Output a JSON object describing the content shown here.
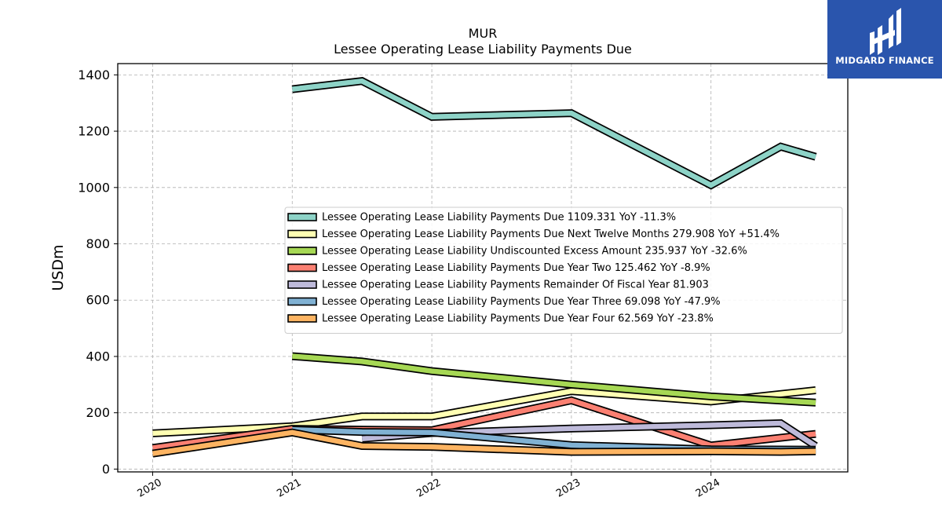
{
  "chart_data": {
    "type": "line",
    "title": "MUR",
    "subtitle": "Lessee Operating Lease Liability Payments Due",
    "xlabel": "",
    "ylabel": "USDm",
    "xlim": [
      2019.75,
      2024.98
    ],
    "ylim": [
      -10,
      1440
    ],
    "x_ticks": [
      "2020",
      "2021",
      "2022",
      "2023",
      "2024"
    ],
    "y_ticks": [
      "0",
      "200",
      "400",
      "600",
      "800",
      "1000",
      "1200",
      "1400"
    ],
    "grid": true,
    "legend_position": "center-right",
    "series": [
      {
        "name": "Lessee Operating Lease Liability Payments Due",
        "legend_label": "Lessee Operating Lease Liability Payments Due  1109.331 YoY -11.3%",
        "color": "#8dd3c7",
        "points": [
          [
            2021.0,
            1349
          ],
          [
            2021.5,
            1378
          ],
          [
            2022.0,
            1251
          ],
          [
            2023.0,
            1264
          ],
          [
            2024.0,
            1008
          ],
          [
            2024.5,
            1145
          ],
          [
            2024.75,
            1109
          ]
        ]
      },
      {
        "name": "Lessee Operating Lease Liability Payments Due Next Twelve Months",
        "legend_label": "Lessee Operating Lease Liability Payments Due Next Twelve Months  279.908 YoY +51.4%",
        "color": "#ffffb3",
        "points": [
          [
            2020.0,
            127
          ],
          [
            2021.0,
            152
          ],
          [
            2021.5,
            187
          ],
          [
            2022.0,
            187
          ],
          [
            2023.0,
            277
          ],
          [
            2024.0,
            240
          ],
          [
            2024.75,
            280
          ]
        ]
      },
      {
        "name": "Lessee Operating Lease Liability Undiscounted Excess Amount",
        "legend_label": "Lessee Operating Lease Liability Undiscounted Excess Amount  235.937 YoY -32.6%",
        "color": "#a6d854",
        "points": [
          [
            2021.0,
            401
          ],
          [
            2021.5,
            382
          ],
          [
            2022.0,
            348
          ],
          [
            2023.0,
            300
          ],
          [
            2024.0,
            258
          ],
          [
            2024.75,
            236
          ]
        ]
      },
      {
        "name": "Lessee Operating Lease Liability Payments Due Year Two",
        "legend_label": "Lessee Operating Lease Liability Payments Due Year Two  125.462 YoY -8.9%",
        "color": "#fb8072",
        "points": [
          [
            2020.0,
            75
          ],
          [
            2021.0,
            143
          ],
          [
            2021.5,
            140
          ],
          [
            2022.0,
            138
          ],
          [
            2023.0,
            244
          ],
          [
            2024.0,
            84
          ],
          [
            2024.75,
            125
          ]
        ]
      },
      {
        "name": "Lessee Operating Lease Liability Payments Remainder Of Fiscal Year",
        "legend_label": "Lessee Operating Lease Liability Payments Remainder Of Fiscal Year  81.903",
        "color": "#bebada",
        "points": [
          [
            2021.5,
            108
          ],
          [
            2022.0,
            128
          ],
          [
            2023.0,
            144
          ],
          [
            2024.0,
            156
          ],
          [
            2024.5,
            163
          ],
          [
            2024.75,
            82
          ]
        ]
      },
      {
        "name": "Lessee Operating Lease Liability Payments Due Year Three",
        "legend_label": "Lessee Operating Lease Liability Payments Due Year Three  69.098 YoY -47.9%",
        "color": "#80b1d3",
        "points": [
          [
            2021.0,
            140
          ],
          [
            2021.5,
            132
          ],
          [
            2022.0,
            130
          ],
          [
            2023.0,
            85
          ],
          [
            2024.0,
            70
          ],
          [
            2024.75,
            69
          ]
        ]
      },
      {
        "name": "Lessee Operating Lease Liability Payments Due Year Four",
        "legend_label": "Lessee Operating Lease Liability Payments Due Year Four  62.569 YoY -23.8%",
        "color": "#fdb462",
        "points": [
          [
            2020.0,
            55
          ],
          [
            2021.0,
            130
          ],
          [
            2021.5,
            82
          ],
          [
            2022.0,
            79
          ],
          [
            2023.0,
            61
          ],
          [
            2024.0,
            63
          ],
          [
            2024.5,
            61
          ],
          [
            2024.75,
            63
          ]
        ]
      }
    ]
  },
  "logo": {
    "text": "MIDGARD FINANCE",
    "background": "#2a55ad"
  }
}
